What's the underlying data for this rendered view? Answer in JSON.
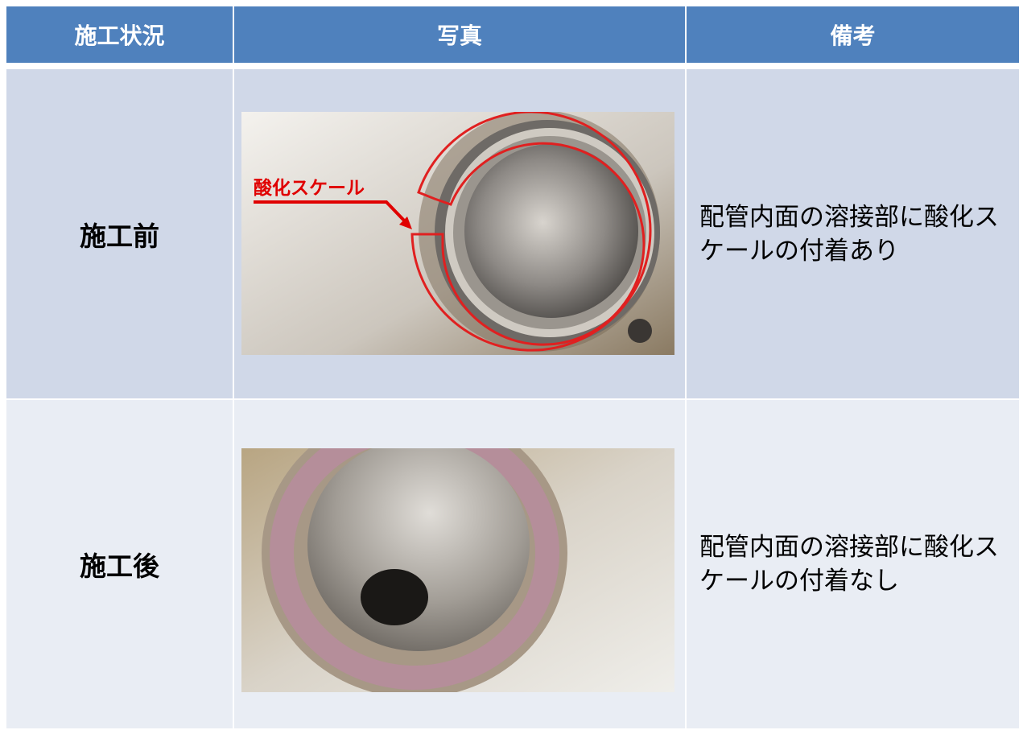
{
  "header": {
    "columns": [
      "施工状況",
      "写真",
      "備考"
    ]
  },
  "rows": [
    {
      "status": "施工前",
      "photo_annotation": "酸化スケール",
      "remarks": "配管内面の溶接部に酸化スケールの付着あり"
    },
    {
      "status": "施工後",
      "remarks": "配管内面の溶接部に酸化スケールの付着なし"
    }
  ]
}
